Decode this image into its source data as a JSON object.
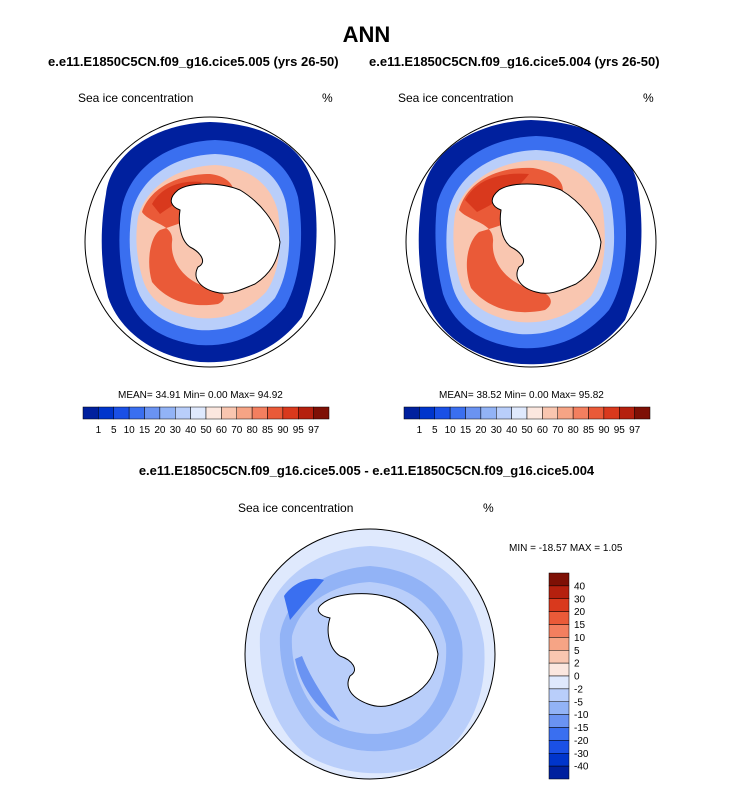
{
  "title": "ANN",
  "panels": [
    {
      "case_title": "e.e11.E1850C5CN.f09_g16.cice5.005 (yrs 26-50)",
      "field_label": "Sea ice concentration",
      "units": "%",
      "stats": "MEAN=  34.91  Min=   0.00  Max=  94.92"
    },
    {
      "case_title": "e.e11.E1850C5CN.f09_g16.cice5.004 (yrs 26-50)",
      "field_label": "Sea ice concentration",
      "units": "%",
      "stats": "MEAN=  38.52  Min=   0.00  Max=  95.82"
    }
  ],
  "colorbar_ice": {
    "colors": [
      "#00209e",
      "#0035cc",
      "#1a50e6",
      "#3a6ff0",
      "#6a93f2",
      "#92b3f6",
      "#b9cefa",
      "#dfe9fd",
      "#fbe7df",
      "#f9c6b0",
      "#f6a485",
      "#f37f5f",
      "#ea5a38",
      "#d9391d",
      "#b5200e",
      "#7e1005"
    ],
    "labels": [
      "1",
      "5",
      "10",
      "15",
      "20",
      "30",
      "40",
      "50",
      "60",
      "70",
      "80",
      "85",
      "90",
      "95",
      "97"
    ]
  },
  "difference": {
    "title": "e.e11.E1850C5CN.f09_g16.cice5.005 - e.e11.E1850C5CN.f09_g16.cice5.004",
    "field_label": "Sea ice concentration",
    "units": "%",
    "stats": "MIN = -18.57 MAX =   1.05"
  },
  "colorbar_diff": {
    "colors": [
      "#7e1005",
      "#b5200e",
      "#d9391d",
      "#ea5a38",
      "#f37f5f",
      "#f6a485",
      "#f9c6b0",
      "#fbe7df",
      "#dfe9fd",
      "#b9cefa",
      "#92b3f6",
      "#6a93f2",
      "#3a6ff0",
      "#1a50e6",
      "#0035cc",
      "#00209e"
    ],
    "labels": [
      "40",
      "30",
      "20",
      "15",
      "10",
      "5",
      "2",
      "0",
      "-2",
      "-5",
      "-10",
      "-15",
      "-20",
      "-30",
      "-40"
    ]
  }
}
